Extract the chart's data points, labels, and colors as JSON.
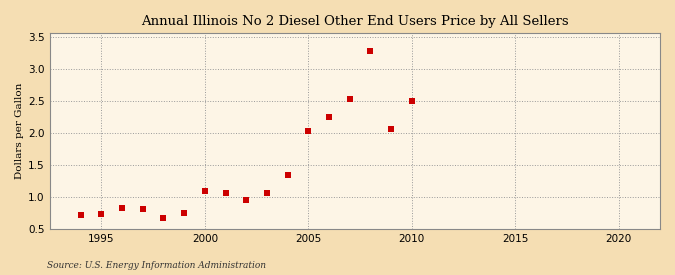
{
  "title": "Annual Illinois No 2 Diesel Other End Users Price by All Sellers",
  "ylabel": "Dollars per Gallon",
  "source": "Source: U.S. Energy Information Administration",
  "figure_bg": "#f5deb3",
  "plot_bg": "#fdf5e6",
  "marker_color": "#cc0000",
  "grid_color": "#999999",
  "xlim": [
    1992.5,
    2022
  ],
  "ylim": [
    0.5,
    3.55
  ],
  "xticks": [
    1995,
    2000,
    2005,
    2010,
    2015,
    2020
  ],
  "yticks": [
    0.5,
    1.0,
    1.5,
    2.0,
    2.5,
    3.0,
    3.5
  ],
  "years": [
    1994,
    1995,
    1996,
    1997,
    1998,
    1999,
    2000,
    2001,
    2002,
    2003,
    2004,
    2005,
    2006,
    2007,
    2008,
    2009,
    2010
  ],
  "prices": [
    0.72,
    0.73,
    0.82,
    0.8,
    0.67,
    0.74,
    1.09,
    1.05,
    0.95,
    1.05,
    1.33,
    2.02,
    2.24,
    2.52,
    3.28,
    2.05,
    2.49
  ]
}
